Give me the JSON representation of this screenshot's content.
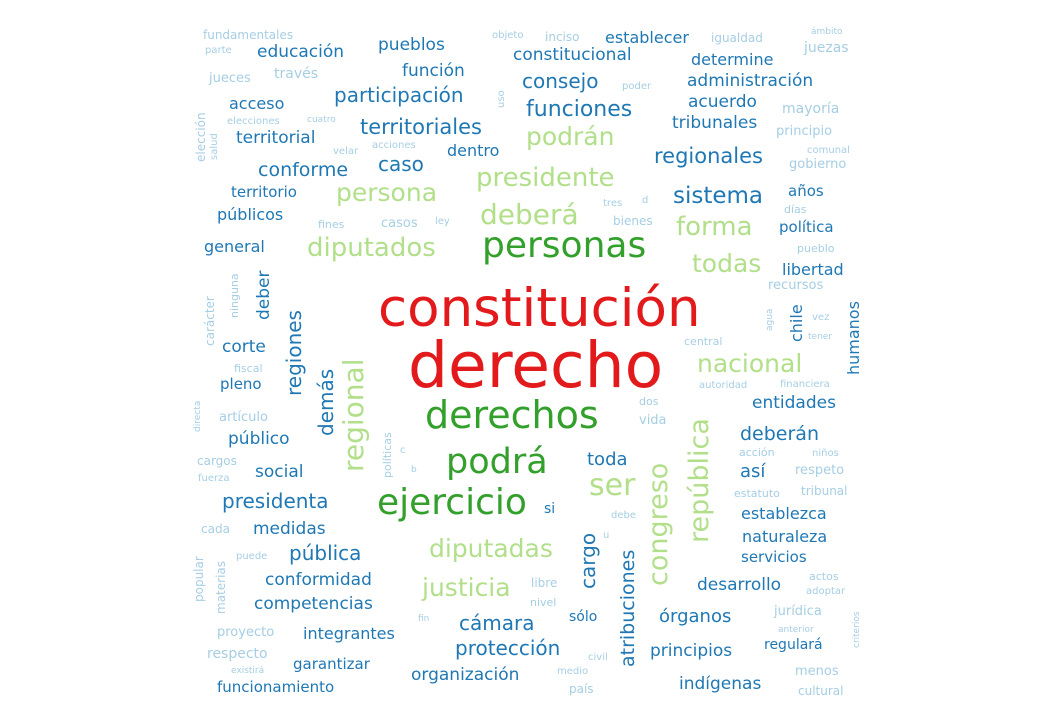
{
  "colors": {
    "red": "#e31a1c",
    "dark_green": "#33a02c",
    "light_green": "#b2df8a",
    "dark_blue": "#1f78b4",
    "light_blue": "#a6cee3"
  },
  "words": [
    "constitución",
    "derecho",
    "derechos",
    "personas",
    "podrá",
    "ejercicio",
    "deberá",
    "presidente",
    "diputados",
    "podrán",
    "persona",
    "forma",
    "todas",
    "nacional",
    "regional",
    "ser",
    "diputadas",
    "justicia",
    "república",
    "congreso",
    "territoriales",
    "participación",
    "constitucional",
    "funciones",
    "consejo",
    "función",
    "pueblos",
    "educación",
    "establecer",
    "determine",
    "administración",
    "acuerdo",
    "tribunales",
    "regionales",
    "sistema",
    "años",
    "política",
    "libertad",
    "territorial",
    "acceso",
    "conforme",
    "caso",
    "dentro",
    "territorio",
    "públicos",
    "general",
    "deber",
    "regiones",
    "corte",
    "pleno",
    "demás",
    "chile",
    "humanos",
    "entidades",
    "deberán",
    "así",
    "toda",
    "público",
    "social",
    "presidenta",
    "medidas",
    "pública",
    "si",
    "conformidad",
    "competencias",
    "integrantes",
    "garantizar",
    "funcionamiento",
    "cargo",
    "atribuciones",
    "cámara",
    "protección",
    "organización",
    "sólo",
    "órganos",
    "principios",
    "indígenas",
    "establezca",
    "naturaleza",
    "servicios",
    "desarrollo",
    "regulará",
    "fundamentales",
    "parte",
    "jueces",
    "través",
    "elecciones",
    "cuatro",
    "velar",
    "acciones",
    "objeto",
    "inciso",
    "igualdad",
    "ámbito",
    "juezas",
    "uso",
    "poder",
    "mayoría",
    "principio",
    "comunal",
    "gobierno",
    "elección",
    "salud",
    "fines",
    "casos",
    "ley",
    "tres",
    "d",
    "bienes",
    "días",
    "pueblo",
    "recursos",
    "carácter",
    "ninguna",
    "agua",
    "vez",
    "tener",
    "central",
    "autoridad",
    "financiera",
    "fiscal",
    "artículo",
    "directa",
    "dos",
    "vida",
    "acción",
    "niños",
    "respeto",
    "estatuto",
    "tribunal",
    "políticas",
    "c",
    "b",
    "cargos",
    "fuerza",
    "cada",
    "debe",
    "u",
    "popular",
    "materias",
    "puede",
    "libre",
    "nivel",
    "actos",
    "adoptar",
    "jurídica",
    "criterios",
    "anterior",
    "proyecto",
    "respecto",
    "fin",
    "existirá",
    "medio",
    "civil",
    "país",
    "menos",
    "cultural"
  ]
}
